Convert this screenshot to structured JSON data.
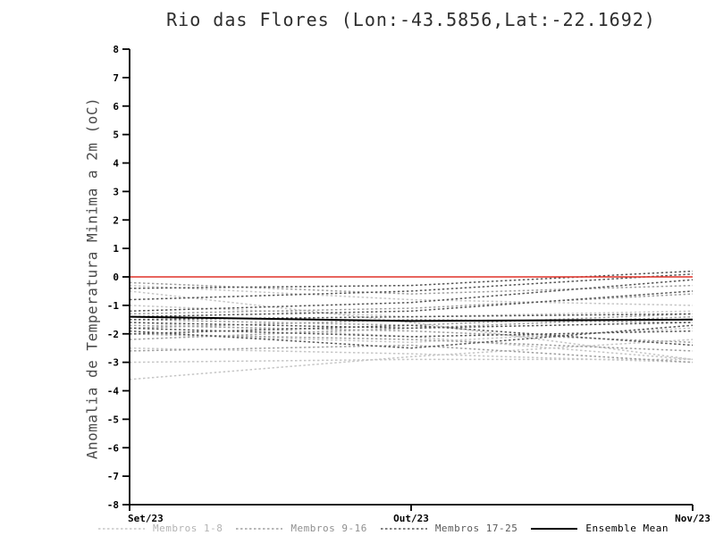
{
  "chart_data": {
    "type": "line",
    "title": "Rio das Flores (Lon:-43.5856,Lat:-22.1692)",
    "ylabel": "Anomalia de Temperatura Minima a 2m (oC)",
    "xlabel": "",
    "categories": [
      "Set/23",
      "Out/23",
      "Nov/23"
    ],
    "ylim": [
      -8,
      8
    ],
    "ytick_step": 1,
    "grid": false,
    "background": "#ffffff",
    "zero_line": {
      "value": 0,
      "color": "#e03228"
    },
    "group_colors": {
      "g1": "#c6c6c6",
      "g2": "#9f9f9f",
      "g3": "#575757",
      "mean": "#000000"
    },
    "legend": [
      {
        "label": "Membros 1-8",
        "style": "dashed",
        "color": "#c6c6c6",
        "text_color": "#b3b3b3"
      },
      {
        "label": "Membros 9-16",
        "style": "dashed",
        "color": "#9f9f9f",
        "text_color": "#8f8f8f"
      },
      {
        "label": "Membros 17-25",
        "style": "dashed",
        "color": "#575757",
        "text_color": "#5a5a5a"
      },
      {
        "label": "Ensemble Mean",
        "style": "solid",
        "color": "#000000",
        "text_color": "#000000"
      }
    ],
    "members": [
      {
        "name": "Membro 1",
        "group": "g1",
        "values": [
          -0.3,
          -0.8,
          -1.0
        ]
      },
      {
        "name": "Membro 2",
        "group": "g1",
        "values": [
          -0.5,
          -1.6,
          -2.9
        ]
      },
      {
        "name": "Membro 3",
        "group": "g1",
        "values": [
          -1.0,
          -1.4,
          -1.2
        ]
      },
      {
        "name": "Membro 4",
        "group": "g1",
        "values": [
          -1.6,
          -2.1,
          -2.9
        ]
      },
      {
        "name": "Membro 5",
        "group": "g1",
        "values": [
          -2.0,
          -2.3,
          -1.8
        ]
      },
      {
        "name": "Membro 6",
        "group": "g1",
        "values": [
          -2.5,
          -2.7,
          -3.0
        ]
      },
      {
        "name": "Membro 7",
        "group": "g1",
        "values": [
          -3.0,
          -2.9,
          -2.9
        ]
      },
      {
        "name": "Membro 8",
        "group": "g1",
        "values": [
          -3.6,
          -2.8,
          -2.2
        ]
      },
      {
        "name": "Membro 9",
        "group": "g2",
        "values": [
          -0.2,
          -0.6,
          -0.3
        ]
      },
      {
        "name": "Membro 10",
        "group": "g2",
        "values": [
          -1.3,
          -1.1,
          -0.6
        ]
      },
      {
        "name": "Membro 11",
        "group": "g2",
        "values": [
          -1.5,
          -1.7,
          -1.3
        ]
      },
      {
        "name": "Membro 12",
        "group": "g2",
        "values": [
          -1.7,
          -1.9,
          -2.3
        ]
      },
      {
        "name": "Membro 13",
        "group": "g2",
        "values": [
          -1.8,
          -1.5,
          -1.6
        ]
      },
      {
        "name": "Membro 14",
        "group": "g2",
        "values": [
          -2.0,
          -2.2,
          -2.6
        ]
      },
      {
        "name": "Membro 15",
        "group": "g2",
        "values": [
          -2.2,
          -1.8,
          -1.4
        ]
      },
      {
        "name": "Membro 16",
        "group": "g2",
        "values": [
          -2.6,
          -2.4,
          -3.0
        ]
      },
      {
        "name": "Membro 17",
        "group": "g3",
        "values": [
          -0.4,
          -0.3,
          0.2
        ]
      },
      {
        "name": "Membro 18",
        "group": "g3",
        "values": [
          -0.8,
          -0.5,
          0.1
        ]
      },
      {
        "name": "Membro 19",
        "group": "g3",
        "values": [
          -1.2,
          -0.9,
          -0.1
        ]
      },
      {
        "name": "Membro 20",
        "group": "g3",
        "values": [
          -1.4,
          -1.2,
          -0.5
        ]
      },
      {
        "name": "Membro 21",
        "group": "g3",
        "values": [
          -1.5,
          -1.4,
          -1.3
        ]
      },
      {
        "name": "Membro 22",
        "group": "g3",
        "values": [
          -1.6,
          -1.8,
          -1.6
        ]
      },
      {
        "name": "Membro 23",
        "group": "g3",
        "values": [
          -1.8,
          -2.1,
          -1.9
        ]
      },
      {
        "name": "Membro 24",
        "group": "g3",
        "values": [
          -2.0,
          -1.7,
          -2.4
        ]
      },
      {
        "name": "Membro 25",
        "group": "g3",
        "values": [
          -1.9,
          -2.5,
          -1.7
        ]
      }
    ],
    "ensemble_mean": {
      "name": "Ensemble Mean",
      "group": "mean",
      "values": [
        -1.4,
        -1.55,
        -1.5
      ]
    }
  }
}
